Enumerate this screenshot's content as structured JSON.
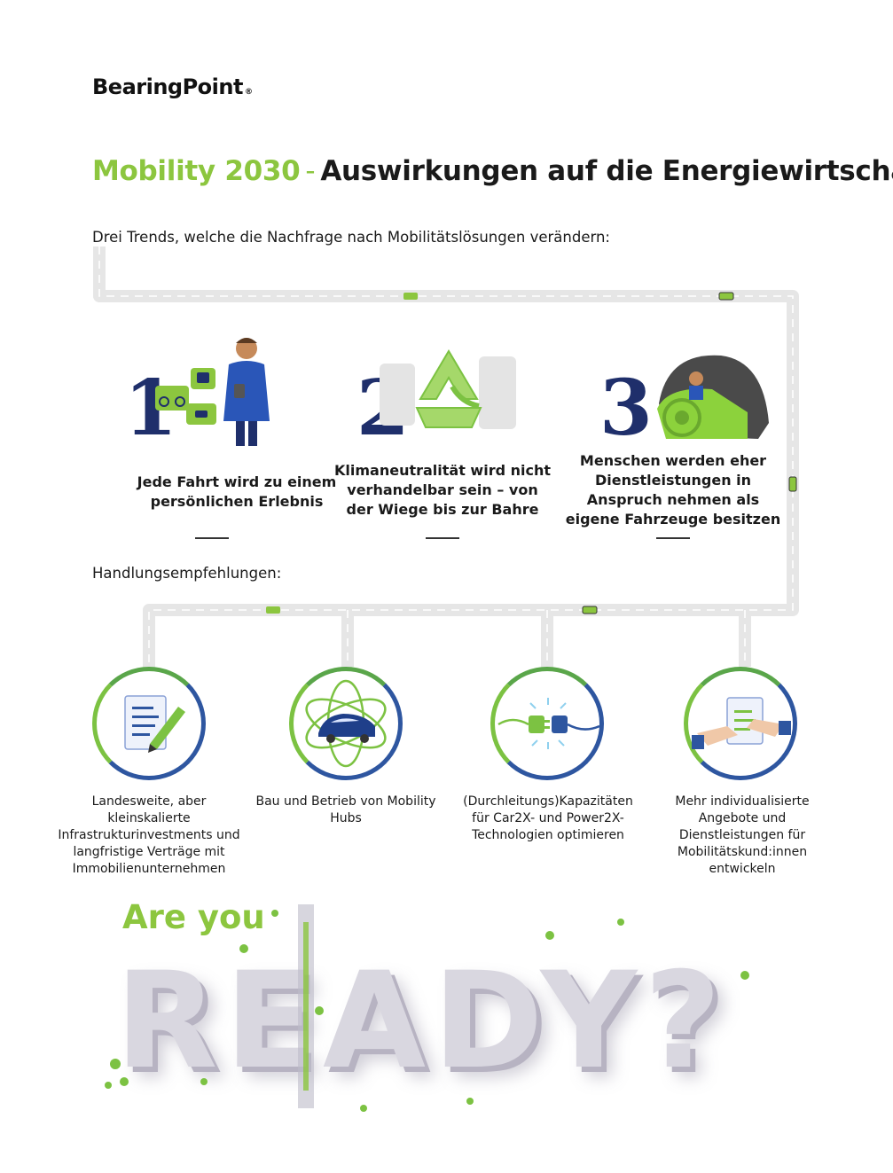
{
  "logo": {
    "text": "BearingPoint",
    "reg": "®"
  },
  "title": {
    "accent": "Mobility 2030",
    "separator": "-",
    "main": "Auswirkungen auf die Energiewirtschaft"
  },
  "subtitle": "Drei Trends, welche die Nachfrage nach Mobilitätslösungen verändern:",
  "trends": [
    {
      "number": "1",
      "text": "Jede Fahrt wird zu einem persönlichen Erlebnis",
      "icon": "person-with-mobility-bubbles-icon"
    },
    {
      "number": "2",
      "text": "Klimaneutralität wird nicht verhandelbar sein – von der Wiege bis zur Bahre",
      "icon": "recycling-arrows-icon"
    },
    {
      "number": "3",
      "text": "Menschen werden eher Dienstleistungen in Anspruch nehmen als eigene Fahrzeuge besitzen",
      "icon": "pod-vehicle-icon"
    }
  ],
  "recommendations_label": "Handlungsempfehlungen:",
  "recommendations": [
    {
      "text": "Landesweite, aber kleinskalierte Infrastrukturinvestments und langfristige Verträge mit Immobilienunternehmen",
      "icon": "document-pencil-icon"
    },
    {
      "text": "Bau und Betrieb von Mobility Hubs",
      "icon": "car-orbit-icon"
    },
    {
      "text": "(Durchleitungs)Kapazitäten für Car2X- und Power2X-Technologien optimieren",
      "icon": "plug-connector-icon"
    },
    {
      "text": "Mehr individualisierte Angebote und Dienstleistungen für Mobilitätskund:innen entwickeln",
      "icon": "handshake-document-icon"
    }
  ],
  "closing": {
    "are_you": "Are you",
    "ready": "READY?"
  },
  "colors": {
    "green": "#8cc63f",
    "navy": "#1f2f6b",
    "blue": "#2e56a0",
    "road": "#e8e8e8"
  }
}
